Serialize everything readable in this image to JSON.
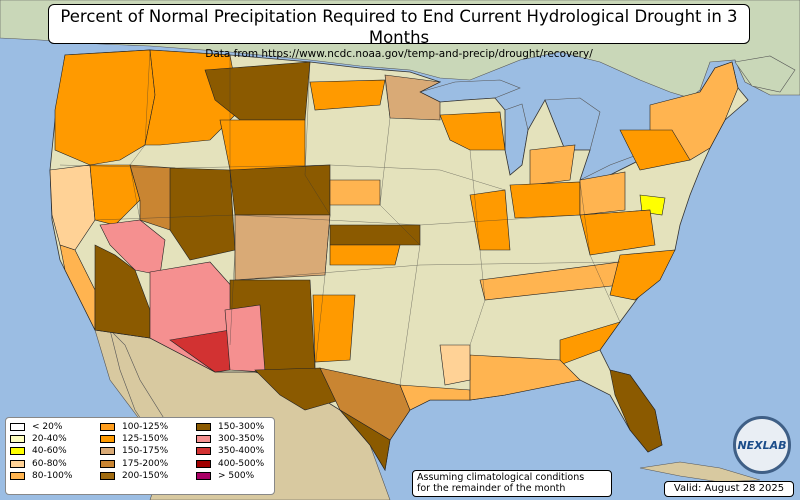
{
  "title": "Percent of Normal Precipitation Required to End Current Hydrological Drought in 3 Months",
  "subtitle": "Data from https://www.ncdc.noaa.gov/temp-and-precip/drought/recovery/",
  "legend": [
    {
      "label": "< 20%",
      "color": "#ffffff"
    },
    {
      "label": "20-40%",
      "color": "#ffffc0"
    },
    {
      "label": "40-60%",
      "color": "#ffff00"
    },
    {
      "label": "60-80%",
      "color": "#ffd296"
    },
    {
      "label": "80-100%",
      "color": "#ffb450"
    },
    {
      "label": "100-125%",
      "color": "#ff9e1e"
    },
    {
      "label": "125-150%",
      "color": "#ff9a00"
    },
    {
      "label": "150-175%",
      "color": "#d9aa76"
    },
    {
      "label": "175-200%",
      "color": "#c98532"
    },
    {
      "label": "200-150%",
      "color": "#a06b10"
    },
    {
      "label": "150-300%",
      "color": "#8b5a00"
    },
    {
      "label": "300-350%",
      "color": "#f59090"
    },
    {
      "label": "350-400%",
      "color": "#d23232"
    },
    {
      "label": "400-500%",
      "color": "#a00000"
    },
    {
      "label": "> 500%",
      "color": "#aa0066"
    }
  ],
  "note": {
    "line1": "Assuming climatological conditions",
    "line2": "for the remainder of the month"
  },
  "valid": "Valid: August 28 2025",
  "logo_text": "NEXLAB",
  "colors": {
    "ocean": "#9bbde3",
    "land": "#e4e2bc",
    "canada": "#c9d7b8",
    "mexico": "#d8c9a0"
  }
}
